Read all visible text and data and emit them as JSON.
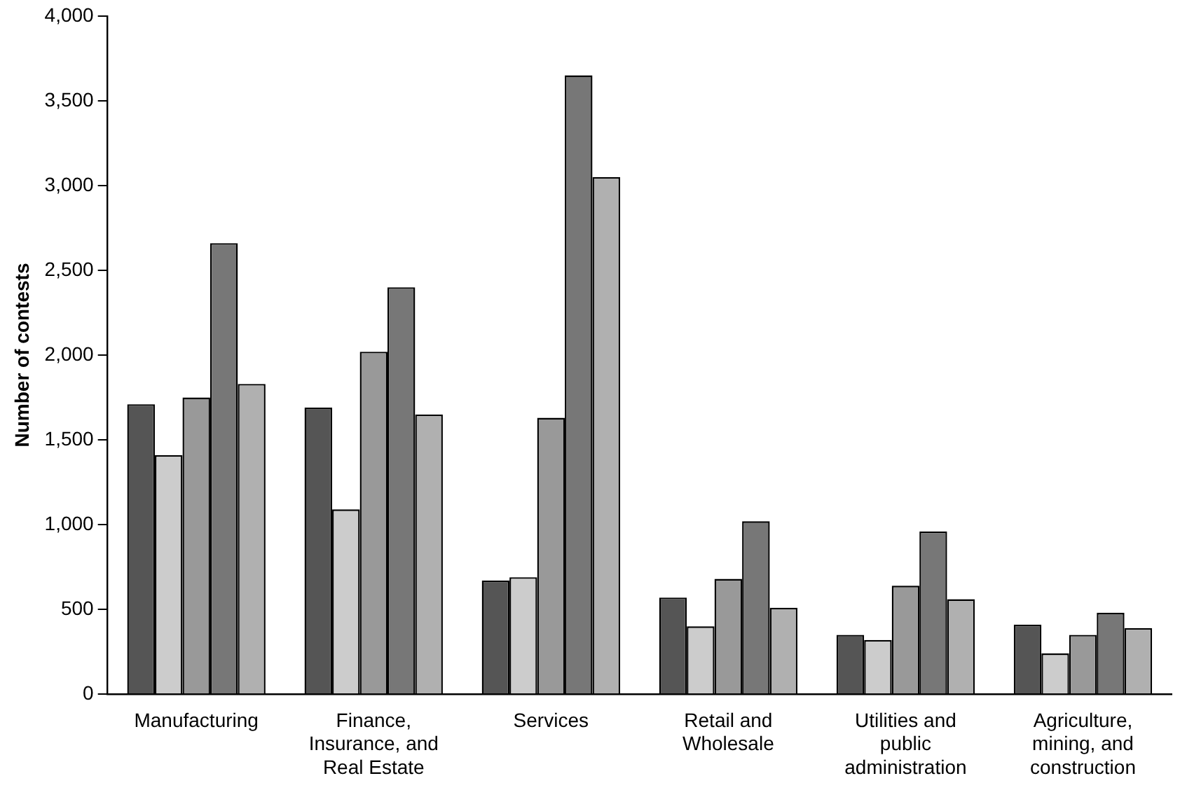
{
  "chart_data": {
    "type": "bar",
    "ylabel": "Number of contests",
    "categories": [
      "Manufacturing",
      "Finance, Insurance, and Real Estate",
      "Services",
      "Retail and Wholesale",
      "Utilities and public administration",
      "Agriculture, mining, and construction"
    ],
    "series": [
      {
        "color": "#555555",
        "values": [
          1710,
          1690,
          670,
          570,
          350,
          410
        ]
      },
      {
        "color": "#cccccc",
        "values": [
          1410,
          1090,
          690,
          400,
          320,
          240
        ]
      },
      {
        "color": "#999999",
        "values": [
          1750,
          2020,
          1630,
          680,
          640,
          350
        ]
      },
      {
        "color": "#777777",
        "values": [
          2660,
          2400,
          3650,
          1020,
          960,
          480
        ]
      },
      {
        "color": "#b0b0b0",
        "values": [
          1830,
          1650,
          3050,
          510,
          560,
          390
        ]
      }
    ],
    "ylim": [
      0,
      4000
    ],
    "yticks": [
      0,
      500,
      {
        "value": 1000,
        "label": "1,000"
      },
      {
        "value": 1500,
        "label": "1,500"
      },
      {
        "value": 2000,
        "label": "2,000"
      },
      {
        "value": 2500,
        "label": "2,500"
      },
      {
        "value": 3000,
        "label": "3,000"
      },
      {
        "value": 3500,
        "label": "3,500"
      },
      {
        "value": 4000,
        "label": "4,000"
      }
    ],
    "grid": false,
    "legend": false
  }
}
